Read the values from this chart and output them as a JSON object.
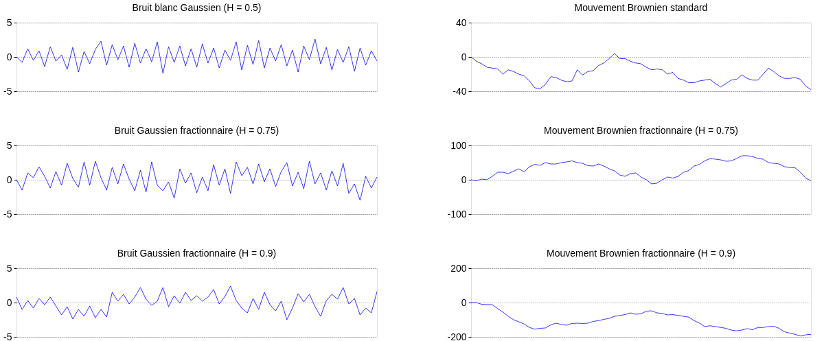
{
  "chart_data": [
    {
      "type": "line",
      "title": "Bruit blanc Gaussien (H = 0.5)",
      "ylim": [
        -5,
        5
      ],
      "yticks": [
        -5,
        0,
        5
      ],
      "grid": "y",
      "tick_labels": "y",
      "line_style": "solid",
      "categories": [
        null,
        null,
        null,
        null,
        null,
        null,
        null,
        null,
        null,
        null,
        null,
        null,
        null,
        null,
        null,
        null,
        null,
        null,
        null,
        null,
        null,
        null,
        null,
        null,
        null,
        null,
        null,
        null,
        null,
        null,
        null,
        null,
        null,
        null,
        null,
        null,
        null,
        null,
        null,
        null,
        null,
        null,
        null,
        null,
        null,
        null,
        null,
        null,
        null,
        null,
        null,
        null,
        null,
        null,
        null,
        null,
        null,
        null,
        null,
        null,
        null,
        null,
        null,
        null,
        null
      ],
      "series": [
        {
          "color": "#0000ff",
          "values": [
            0,
            -0.8,
            1.2,
            -0.5,
            0.9,
            -1.4,
            1.5,
            -0.6,
            0.3,
            -1.8,
            1.4,
            -2.2,
            0.8,
            -1.0,
            1.1,
            2.3,
            -1.2,
            1.8,
            -0.4,
            1.6,
            -1.5,
            2.0,
            -0.9,
            1.2,
            -0.7,
            2.2,
            -2.4,
            1.5,
            -0.8,
            1.6,
            -1.3,
            1.2,
            -1.5,
            1.9,
            -0.9,
            1.3,
            -1.6,
            1.0,
            -0.5,
            2.2,
            -1.9,
            1.7,
            -1.1,
            2.4,
            -1.6,
            1.3,
            -0.6,
            1.8,
            -1.3,
            1.0,
            -2.2,
            1.6,
            -0.4,
            2.6,
            -1.0,
            1.4,
            -1.9,
            1.1,
            -0.8,
            1.5,
            -2.1,
            1.3,
            -1.2,
            0.9,
            -0.6
          ]
        }
      ]
    },
    {
      "type": "line",
      "title": "Mouvement Brownien standard",
      "ylim": [
        -40,
        40
      ],
      "yticks": [
        -40,
        0,
        40
      ],
      "grid": "y",
      "tick_labels": "y",
      "line_style": "solid",
      "categories": [
        null,
        null,
        null,
        null,
        null,
        null,
        null,
        null,
        null,
        null,
        null,
        null,
        null,
        null,
        null,
        null,
        null,
        null,
        null,
        null,
        null,
        null,
        null,
        null,
        null,
        null,
        null,
        null,
        null,
        null,
        null,
        null,
        null,
        null,
        null,
        null,
        null,
        null,
        null,
        null,
        null,
        null,
        null,
        null,
        null,
        null,
        null,
        null,
        null,
        null,
        null,
        null,
        null,
        null,
        null,
        null,
        null,
        null,
        null,
        null,
        null,
        null,
        null,
        null,
        null
      ],
      "series": [
        {
          "color": "#0000ff",
          "values": [
            0,
            -5,
            -8,
            -12,
            -13,
            -14,
            -20,
            -15,
            -17,
            -20,
            -22,
            -28,
            -36,
            -37,
            -32,
            -23,
            -24,
            -27,
            -29,
            -28,
            -15,
            -21,
            -17,
            -16,
            -10,
            -7,
            -2,
            4,
            -2,
            -2,
            -5,
            -7,
            -8,
            -12,
            -15,
            -14,
            -15,
            -20,
            -18,
            -25,
            -27,
            -30,
            -30,
            -28,
            -27,
            -26,
            -31,
            -35,
            -31,
            -27,
            -26,
            -21,
            -25,
            -27,
            -27,
            -20,
            -13,
            -17,
            -22,
            -25,
            -25,
            -24,
            -26,
            -34,
            -38
          ]
        }
      ]
    },
    {
      "type": "line",
      "title": "Bruit Gaussien fractionnaire (H = 0.75)",
      "ylim": [
        -5,
        5
      ],
      "yticks": [
        -5,
        0,
        5
      ],
      "grid": "y",
      "tick_labels": "y",
      "line_style": "solid",
      "categories": [
        null,
        null,
        null,
        null,
        null,
        null,
        null,
        null,
        null,
        null,
        null,
        null,
        null,
        null,
        null,
        null,
        null,
        null,
        null,
        null,
        null,
        null,
        null,
        null,
        null,
        null,
        null,
        null,
        null,
        null,
        null,
        null,
        null,
        null,
        null,
        null,
        null,
        null,
        null,
        null,
        null,
        null,
        null,
        null,
        null,
        null,
        null,
        null,
        null,
        null,
        null,
        null,
        null,
        null,
        null,
        null,
        null,
        null,
        null,
        null,
        null,
        null,
        null,
        null,
        null
      ],
      "series": [
        {
          "color": "#0000ff",
          "values": [
            0,
            -1.5,
            1.0,
            0.3,
            1.9,
            0.5,
            -1.2,
            1.2,
            -0.8,
            2.4,
            0.2,
            -1.1,
            2.6,
            -0.8,
            2.7,
            0.3,
            -1.5,
            1.8,
            -0.6,
            2.3,
            0.1,
            -1.6,
            1.4,
            -1.8,
            2.6,
            -0.8,
            -1.6,
            -0.3,
            -2.7,
            1.6,
            -0.5,
            1.0,
            -1.9,
            0.4,
            -1.6,
            2.2,
            -0.8,
            1.6,
            -2.0,
            2.6,
            0.6,
            1.8,
            -0.6,
            2.3,
            -0.3,
            1.6,
            -1.0,
            1.2,
            2.5,
            -0.9,
            1.1,
            -1.3,
            2.7,
            -0.6,
            1.0,
            -1.5,
            1.3,
            -0.9,
            2.4,
            -2.0,
            -0.6,
            -3.0,
            0.5,
            -1.2,
            0.4
          ]
        }
      ]
    },
    {
      "type": "line",
      "title": "Mouvement Brownien fractionnaire (H = 0.75)",
      "ylim": [
        -100,
        100
      ],
      "yticks": [
        -100,
        0,
        100
      ],
      "grid": "y",
      "tick_labels": "y",
      "line_style": "solid",
      "categories": [
        null,
        null,
        null,
        null,
        null,
        null,
        null,
        null,
        null,
        null,
        null,
        null,
        null,
        null,
        null,
        null,
        null,
        null,
        null,
        null,
        null,
        null,
        null,
        null,
        null,
        null,
        null,
        null,
        null,
        null,
        null,
        null,
        null,
        null,
        null,
        null,
        null,
        null,
        null,
        null,
        null,
        null,
        null,
        null,
        null,
        null,
        null,
        null,
        null,
        null,
        null,
        null,
        null,
        null,
        null,
        null,
        null,
        null,
        null,
        null,
        null,
        null,
        null,
        null,
        null
      ],
      "series": [
        {
          "color": "#0000ff",
          "values": [
            0,
            -3,
            2,
            0,
            10,
            22,
            22,
            18,
            25,
            32,
            23,
            38,
            45,
            42,
            50,
            46,
            46,
            50,
            52,
            55,
            50,
            48,
            41,
            40,
            46,
            40,
            32,
            26,
            14,
            10,
            18,
            20,
            8,
            0,
            -12,
            -10,
            0,
            8,
            5,
            10,
            22,
            27,
            40,
            45,
            55,
            62,
            60,
            58,
            54,
            55,
            62,
            70,
            70,
            68,
            62,
            60,
            50,
            48,
            46,
            38,
            36,
            35,
            22,
            5,
            -3
          ]
        }
      ]
    },
    {
      "type": "line",
      "title": "Bruit Gaussien fractionnaire (H = 0.9)",
      "ylim": [
        -5,
        5
      ],
      "yticks": [
        -5,
        0,
        5
      ],
      "grid": "y",
      "tick_labels": "y",
      "line_style": "solid",
      "categories": [
        null,
        null,
        null,
        null,
        null,
        null,
        null,
        null,
        null,
        null,
        null,
        null,
        null,
        null,
        null,
        null,
        null,
        null,
        null,
        null,
        null,
        null,
        null,
        null,
        null,
        null,
        null,
        null,
        null,
        null,
        null,
        null,
        null,
        null,
        null,
        null,
        null,
        null,
        null,
        null,
        null,
        null,
        null,
        null,
        null,
        null,
        null,
        null,
        null,
        null,
        null,
        null,
        null,
        null,
        null,
        null,
        null,
        null,
        null,
        null,
        null,
        null,
        null,
        null,
        null
      ],
      "series": [
        {
          "color": "#0000ff",
          "values": [
            0.8,
            -1.0,
            0.3,
            -0.8,
            0.6,
            -0.3,
            0.8,
            -0.5,
            -1.8,
            -0.6,
            -2.4,
            -1.0,
            -2.0,
            -0.5,
            -2.2,
            -1.0,
            -2.1,
            1.5,
            0.2,
            1.2,
            -0.2,
            0.8,
            2.2,
            0.5,
            -0.4,
            0.2,
            2.2,
            -0.6,
            1.0,
            -0.1,
            1.5,
            0.3,
            1.0,
            0.2,
            0.8,
            1.9,
            -0.2,
            0.9,
            2.4,
            0.3,
            -0.8,
            -1.5,
            0.6,
            -1.0,
            1.5,
            -0.3,
            -1.2,
            0.2,
            -2.5,
            -0.8,
            1.3,
            0.1,
            1.2,
            -0.6,
            -2.0,
            0.3,
            1.2,
            0.5,
            2.2,
            -0.2,
            0.6,
            -1.8,
            -0.8,
            -1.5,
            1.6
          ]
        }
      ]
    },
    {
      "type": "line",
      "title": "Mouvement Brownien fractionnaire (H = 0.9)",
      "ylim": [
        -200,
        200
      ],
      "yticks": [
        -200,
        0,
        200
      ],
      "grid": "y",
      "tick_labels": "y",
      "line_style": "solid",
      "categories": [
        null,
        null,
        null,
        null,
        null,
        null,
        null,
        null,
        null,
        null,
        null,
        null,
        null,
        null,
        null,
        null,
        null,
        null,
        null,
        null,
        null,
        null,
        null,
        null,
        null,
        null,
        null,
        null,
        null,
        null,
        null,
        null,
        null,
        null,
        null,
        null,
        null,
        null,
        null,
        null,
        null,
        null,
        null,
        null,
        null,
        null,
        null,
        null,
        null,
        null,
        null,
        null,
        null,
        null,
        null,
        null,
        null,
        null,
        null,
        null,
        null,
        null,
        null,
        null,
        null
      ],
      "series": [
        {
          "color": "#0000ff",
          "values": [
            0,
            0,
            -10,
            -12,
            -12,
            -35,
            -55,
            -80,
            -100,
            -112,
            -125,
            -145,
            -155,
            -150,
            -148,
            -130,
            -120,
            -128,
            -132,
            -122,
            -120,
            -122,
            -120,
            -110,
            -105,
            -98,
            -92,
            -80,
            -75,
            -70,
            -60,
            -68,
            -65,
            -50,
            -48,
            -60,
            -63,
            -72,
            -70,
            -75,
            -80,
            -85,
            -105,
            -120,
            -140,
            -135,
            -140,
            -145,
            -150,
            -160,
            -165,
            -160,
            -152,
            -158,
            -145,
            -145,
            -140,
            -138,
            -150,
            -170,
            -178,
            -185,
            -195,
            -188,
            -185
          ]
        }
      ]
    }
  ]
}
